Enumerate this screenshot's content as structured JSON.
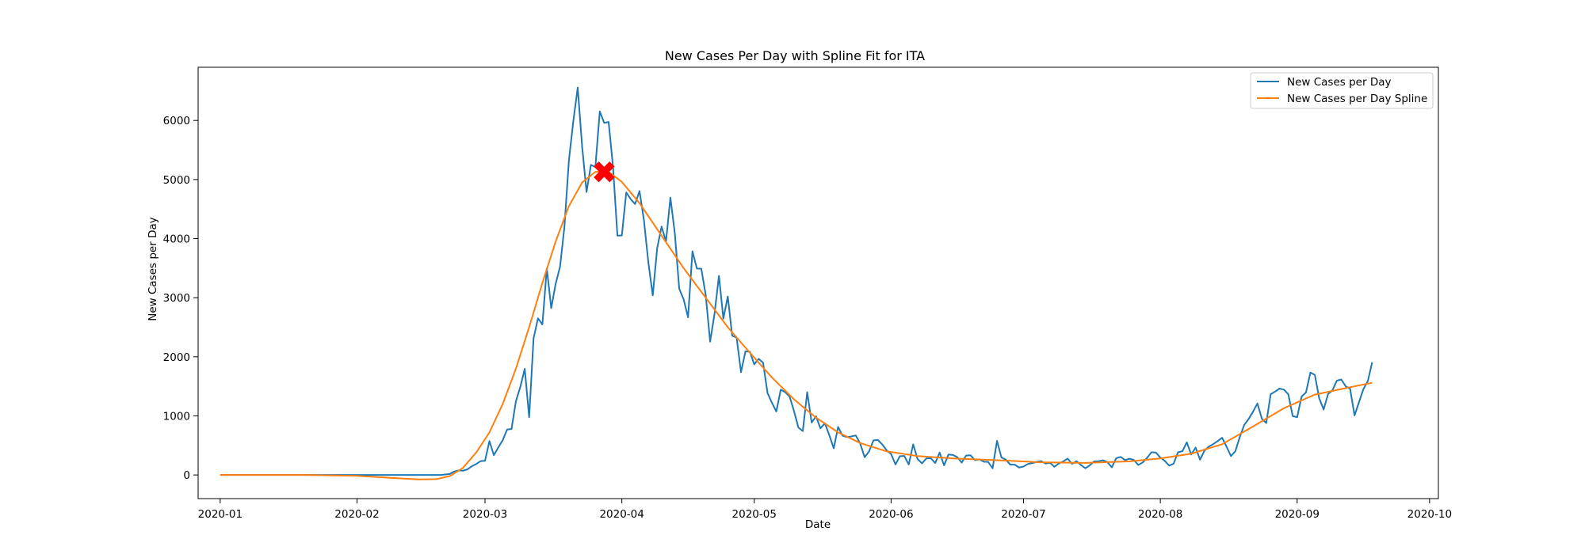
{
  "chart_data": {
    "type": "line",
    "title": "New Cases Per Day with Spline Fit for ITA",
    "xlabel": "Date",
    "ylabel": "New Cases per Day",
    "x_ticks": [
      "2020-01",
      "2020-02",
      "2020-03",
      "2020-04",
      "2020-05",
      "2020-06",
      "2020-07",
      "2020-08",
      "2020-09",
      "2020-10"
    ],
    "y_ticks": [
      0,
      1000,
      2000,
      3000,
      4000,
      5000,
      6000
    ],
    "xlim": [
      "2019-12-27",
      "2020-10-03"
    ],
    "ylim": [
      -400,
      6900
    ],
    "legend_position": "top-right",
    "grid": false,
    "series": [
      {
        "name": "New Cases per Day",
        "color": "#1f77b4",
        "points": [
          [
            "2020-01-01",
            0
          ],
          [
            "2020-02-20",
            0
          ],
          [
            "2020-02-22",
            17
          ],
          [
            "2020-02-23",
            58
          ],
          [
            "2020-02-24",
            78
          ],
          [
            "2020-02-25",
            72
          ],
          [
            "2020-02-26",
            94
          ],
          [
            "2020-02-27",
            147
          ],
          [
            "2020-02-28",
            185
          ],
          [
            "2020-02-29",
            234
          ],
          [
            "2020-03-01",
            239
          ],
          [
            "2020-03-02",
            573
          ],
          [
            "2020-03-03",
            335
          ],
          [
            "2020-03-04",
            466
          ],
          [
            "2020-03-05",
            587
          ],
          [
            "2020-03-06",
            769
          ],
          [
            "2020-03-07",
            778
          ],
          [
            "2020-03-08",
            1247
          ],
          [
            "2020-03-09",
            1492
          ],
          [
            "2020-03-10",
            1797
          ],
          [
            "2020-03-11",
            977
          ],
          [
            "2020-03-12",
            2313
          ],
          [
            "2020-03-13",
            2651
          ],
          [
            "2020-03-14",
            2547
          ],
          [
            "2020-03-15",
            3497
          ],
          [
            "2020-03-16",
            2823
          ],
          [
            "2020-03-17",
            3233
          ],
          [
            "2020-03-18",
            3526
          ],
          [
            "2020-03-19",
            4207
          ],
          [
            "2020-03-20",
            5322
          ],
          [
            "2020-03-21",
            5986
          ],
          [
            "2020-03-22",
            6557
          ],
          [
            "2020-03-23",
            5560
          ],
          [
            "2020-03-24",
            4789
          ],
          [
            "2020-03-25",
            5249
          ],
          [
            "2020-03-26",
            5210
          ],
          [
            "2020-03-27",
            6153
          ],
          [
            "2020-03-28",
            5959
          ],
          [
            "2020-03-29",
            5974
          ],
          [
            "2020-03-30",
            5217
          ],
          [
            "2020-03-31",
            4050
          ],
          [
            "2020-04-01",
            4053
          ],
          [
            "2020-04-02",
            4782
          ],
          [
            "2020-04-03",
            4668
          ],
          [
            "2020-04-04",
            4585
          ],
          [
            "2020-04-05",
            4805
          ],
          [
            "2020-04-06",
            4316
          ],
          [
            "2020-04-07",
            3599
          ],
          [
            "2020-04-08",
            3039
          ],
          [
            "2020-04-09",
            3836
          ],
          [
            "2020-04-10",
            4204
          ],
          [
            "2020-04-11",
            3951
          ],
          [
            "2020-04-12",
            4694
          ],
          [
            "2020-04-13",
            4092
          ],
          [
            "2020-04-14",
            3153
          ],
          [
            "2020-04-15",
            2972
          ],
          [
            "2020-04-16",
            2667
          ],
          [
            "2020-04-17",
            3786
          ],
          [
            "2020-04-18",
            3493
          ],
          [
            "2020-04-19",
            3491
          ],
          [
            "2020-04-20",
            3047
          ],
          [
            "2020-04-21",
            2256
          ],
          [
            "2020-04-22",
            2729
          ],
          [
            "2020-04-23",
            3370
          ],
          [
            "2020-04-24",
            2646
          ],
          [
            "2020-04-25",
            3021
          ],
          [
            "2020-04-26",
            2357
          ],
          [
            "2020-04-27",
            2324
          ],
          [
            "2020-04-28",
            1739
          ],
          [
            "2020-04-29",
            2091
          ],
          [
            "2020-04-30",
            2086
          ],
          [
            "2020-05-01",
            1872
          ],
          [
            "2020-05-02",
            1965
          ],
          [
            "2020-05-03",
            1900
          ],
          [
            "2020-05-04",
            1389
          ],
          [
            "2020-05-05",
            1221
          ],
          [
            "2020-05-06",
            1075
          ],
          [
            "2020-05-07",
            1444
          ],
          [
            "2020-05-08",
            1401
          ],
          [
            "2020-05-09",
            1327
          ],
          [
            "2020-05-10",
            1083
          ],
          [
            "2020-05-11",
            802
          ],
          [
            "2020-05-12",
            744
          ],
          [
            "2020-05-13",
            1402
          ],
          [
            "2020-05-14",
            888
          ],
          [
            "2020-05-15",
            992
          ],
          [
            "2020-05-16",
            789
          ],
          [
            "2020-05-17",
            875
          ],
          [
            "2020-05-18",
            675
          ],
          [
            "2020-05-19",
            451
          ],
          [
            "2020-05-20",
            813
          ],
          [
            "2020-05-21",
            665
          ],
          [
            "2020-05-22",
            642
          ],
          [
            "2020-05-23",
            652
          ],
          [
            "2020-05-24",
            669
          ],
          [
            "2020-05-25",
            531
          ],
          [
            "2020-05-26",
            300
          ],
          [
            "2020-05-27",
            397
          ],
          [
            "2020-05-28",
            584
          ],
          [
            "2020-05-29",
            593
          ],
          [
            "2020-05-30",
            516
          ],
          [
            "2020-05-31",
            416
          ],
          [
            "2020-06-01",
            355
          ],
          [
            "2020-06-02",
            178
          ],
          [
            "2020-06-03",
            318
          ],
          [
            "2020-06-04",
            321
          ],
          [
            "2020-06-05",
            177
          ],
          [
            "2020-06-06",
            518
          ],
          [
            "2020-06-07",
            270
          ],
          [
            "2020-06-08",
            197
          ],
          [
            "2020-06-09",
            280
          ],
          [
            "2020-06-10",
            283
          ],
          [
            "2020-06-11",
            202
          ],
          [
            "2020-06-12",
            379
          ],
          [
            "2020-06-13",
            163
          ],
          [
            "2020-06-14",
            346
          ],
          [
            "2020-06-15",
            338
          ],
          [
            "2020-06-16",
            301
          ],
          [
            "2020-06-17",
            210
          ],
          [
            "2020-06-18",
            328
          ],
          [
            "2020-06-19",
            333
          ],
          [
            "2020-06-20",
            251
          ],
          [
            "2020-06-21",
            264
          ],
          [
            "2020-06-22",
            224
          ],
          [
            "2020-06-23",
            221
          ],
          [
            "2020-06-24",
            113
          ],
          [
            "2020-06-25",
            577
          ],
          [
            "2020-06-26",
            296
          ],
          [
            "2020-06-27",
            259
          ],
          [
            "2020-06-28",
            175
          ],
          [
            "2020-06-29",
            174
          ],
          [
            "2020-06-30",
            126
          ],
          [
            "2020-07-01",
            142
          ],
          [
            "2020-07-02",
            187
          ],
          [
            "2020-07-03",
            201
          ],
          [
            "2020-07-04",
            223
          ],
          [
            "2020-07-05",
            235
          ],
          [
            "2020-07-06",
            192
          ],
          [
            "2020-07-07",
            208
          ],
          [
            "2020-07-08",
            138
          ],
          [
            "2020-07-09",
            193
          ],
          [
            "2020-07-10",
            229
          ],
          [
            "2020-07-11",
            276
          ],
          [
            "2020-07-12",
            188
          ],
          [
            "2020-07-13",
            234
          ],
          [
            "2020-07-14",
            169
          ],
          [
            "2020-07-15",
            114
          ],
          [
            "2020-07-16",
            162
          ],
          [
            "2020-07-17",
            230
          ],
          [
            "2020-07-18",
            233
          ],
          [
            "2020-07-19",
            249
          ],
          [
            "2020-07-20",
            218
          ],
          [
            "2020-07-21",
            129
          ],
          [
            "2020-07-22",
            282
          ],
          [
            "2020-07-23",
            306
          ],
          [
            "2020-07-24",
            252
          ],
          [
            "2020-07-25",
            275
          ],
          [
            "2020-07-26",
            255
          ],
          [
            "2020-07-27",
            170
          ],
          [
            "2020-07-28",
            212
          ],
          [
            "2020-07-29",
            289
          ],
          [
            "2020-07-30",
            386
          ],
          [
            "2020-07-31",
            379
          ],
          [
            "2020-08-01",
            295
          ],
          [
            "2020-08-02",
            239
          ],
          [
            "2020-08-03",
            159
          ],
          [
            "2020-08-04",
            190
          ],
          [
            "2020-08-05",
            384
          ],
          [
            "2020-08-06",
            402
          ],
          [
            "2020-08-07",
            552
          ],
          [
            "2020-08-08",
            347
          ],
          [
            "2020-08-09",
            463
          ],
          [
            "2020-08-10",
            259
          ],
          [
            "2020-08-11",
            412
          ],
          [
            "2020-08-12",
            481
          ],
          [
            "2020-08-13",
            523
          ],
          [
            "2020-08-14",
            574
          ],
          [
            "2020-08-15",
            629
          ],
          [
            "2020-08-16",
            479
          ],
          [
            "2020-08-17",
            320
          ],
          [
            "2020-08-18",
            403
          ],
          [
            "2020-08-19",
            642
          ],
          [
            "2020-08-20",
            845
          ],
          [
            "2020-08-21",
            947
          ],
          [
            "2020-08-22",
            1071
          ],
          [
            "2020-08-23",
            1210
          ],
          [
            "2020-08-24",
            953
          ],
          [
            "2020-08-25",
            878
          ],
          [
            "2020-08-26",
            1367
          ],
          [
            "2020-08-27",
            1411
          ],
          [
            "2020-08-28",
            1462
          ],
          [
            "2020-08-29",
            1444
          ],
          [
            "2020-08-30",
            1365
          ],
          [
            "2020-08-31",
            996
          ],
          [
            "2020-09-01",
            978
          ],
          [
            "2020-09-02",
            1326
          ],
          [
            "2020-09-03",
            1397
          ],
          [
            "2020-09-04",
            1733
          ],
          [
            "2020-09-05",
            1695
          ],
          [
            "2020-09-06",
            1297
          ],
          [
            "2020-09-07",
            1108
          ],
          [
            "2020-09-08",
            1370
          ],
          [
            "2020-09-09",
            1434
          ],
          [
            "2020-09-10",
            1597
          ],
          [
            "2020-09-11",
            1616
          ],
          [
            "2020-09-12",
            1501
          ],
          [
            "2020-09-13",
            1458
          ],
          [
            "2020-09-14",
            1008
          ],
          [
            "2020-09-15",
            1229
          ],
          [
            "2020-09-16",
            1452
          ],
          [
            "2020-09-17",
            1585
          ],
          [
            "2020-09-18",
            1907
          ]
        ]
      },
      {
        "name": "New Cases per Day Spline",
        "color": "#ff7f0e",
        "points": [
          [
            "2020-01-01",
            0
          ],
          [
            "2020-01-20",
            0
          ],
          [
            "2020-02-01",
            -15
          ],
          [
            "2020-02-10",
            -55
          ],
          [
            "2020-02-15",
            -75
          ],
          [
            "2020-02-19",
            -70
          ],
          [
            "2020-02-22",
            -20
          ],
          [
            "2020-02-25",
            120
          ],
          [
            "2020-02-28",
            380
          ],
          [
            "2020-03-02",
            720
          ],
          [
            "2020-03-05",
            1200
          ],
          [
            "2020-03-08",
            1800
          ],
          [
            "2020-03-11",
            2500
          ],
          [
            "2020-03-14",
            3250
          ],
          [
            "2020-03-17",
            3950
          ],
          [
            "2020-03-20",
            4550
          ],
          [
            "2020-03-23",
            4950
          ],
          [
            "2020-03-26",
            5130
          ],
          [
            "2020-03-29",
            5130
          ],
          [
            "2020-04-01",
            4960
          ],
          [
            "2020-04-05",
            4600
          ],
          [
            "2020-04-10",
            4050
          ],
          [
            "2020-04-15",
            3500
          ],
          [
            "2020-04-20",
            3000
          ],
          [
            "2020-04-25",
            2500
          ],
          [
            "2020-04-30",
            2070
          ],
          [
            "2020-05-05",
            1650
          ],
          [
            "2020-05-10",
            1280
          ],
          [
            "2020-05-15",
            970
          ],
          [
            "2020-05-20",
            720
          ],
          [
            "2020-05-25",
            540
          ],
          [
            "2020-05-31",
            400
          ],
          [
            "2020-06-07",
            320
          ],
          [
            "2020-06-15",
            280
          ],
          [
            "2020-06-25",
            250
          ],
          [
            "2020-07-05",
            215
          ],
          [
            "2020-07-15",
            205
          ],
          [
            "2020-07-25",
            230
          ],
          [
            "2020-08-01",
            280
          ],
          [
            "2020-08-08",
            360
          ],
          [
            "2020-08-15",
            520
          ],
          [
            "2020-08-22",
            820
          ],
          [
            "2020-08-29",
            1130
          ],
          [
            "2020-09-05",
            1360
          ],
          [
            "2020-09-12",
            1470
          ],
          [
            "2020-09-18",
            1560
          ]
        ]
      },
      {
        "name": "",
        "color": "#ff0000",
        "type": "marker",
        "marker": "X",
        "points": [
          [
            "2020-03-28",
            5130
          ]
        ]
      }
    ]
  }
}
